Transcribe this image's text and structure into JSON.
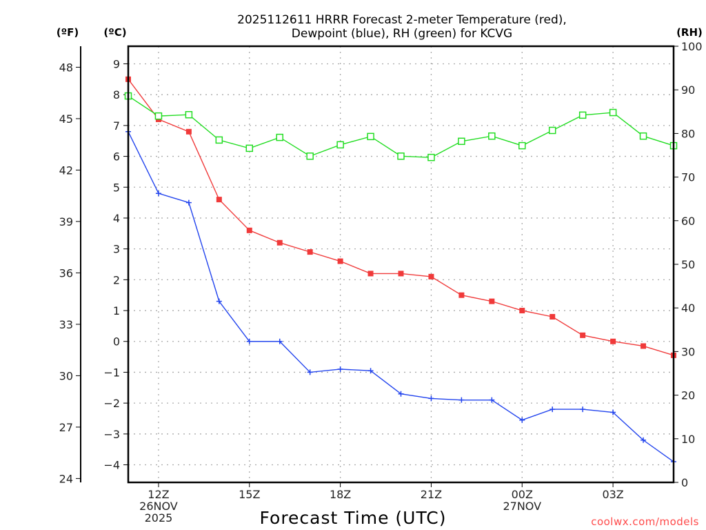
{
  "chart_data": {
    "type": "line",
    "title_lines": [
      "2025112611 HRRR Forecast 2-meter Temperature (red),",
      "Dewpoint (blue), RH (green) for KCVG"
    ],
    "xlabel": "Forecast Time (UTC)",
    "credit": "coolwx.com/models",
    "x_hours": [
      11,
      12,
      13,
      14,
      15,
      16,
      17,
      18,
      19,
      20,
      21,
      22,
      23,
      24,
      25,
      26,
      27,
      28,
      29
    ],
    "x_range_hours": [
      11,
      29
    ],
    "x_ticks": [
      {
        "hour": 12,
        "lines": [
          "12Z",
          "26NOV",
          "2025"
        ]
      },
      {
        "hour": 15,
        "lines": [
          "15Z"
        ]
      },
      {
        "hour": 18,
        "lines": [
          "18Z"
        ]
      },
      {
        "hour": 21,
        "lines": [
          "21Z"
        ]
      },
      {
        "hour": 24,
        "lines": [
          "00Z",
          "27NOV"
        ]
      },
      {
        "hour": 27,
        "lines": [
          "03Z"
        ]
      }
    ],
    "axes": {
      "celsius": {
        "label": "(ºC)",
        "range": [
          -4.57,
          9.57
        ],
        "ticks": [
          9,
          8,
          7,
          6,
          5,
          4,
          3,
          2,
          1,
          0,
          -1,
          -2,
          -3,
          -4
        ]
      },
      "fahrenheit": {
        "label": "(ºF)",
        "ticks": [
          48,
          45,
          42,
          39,
          36,
          33,
          30,
          27,
          24
        ]
      },
      "rh": {
        "label": "(RH)",
        "range": [
          0,
          100
        ],
        "ticks": [
          100,
          90,
          80,
          70,
          60,
          50,
          40,
          30,
          20,
          10,
          0
        ]
      }
    },
    "grid": true,
    "series": [
      {
        "name": "Temperature",
        "axis": "celsius",
        "color": "#f03a3a",
        "marker": "filled-square",
        "values": [
          8.5,
          7.2,
          6.8,
          4.6,
          3.6,
          3.2,
          2.9,
          2.6,
          2.2,
          2.2,
          2.1,
          1.5,
          1.3,
          1.0,
          0.8,
          0.2,
          0.0,
          -0.15,
          -0.45
        ]
      },
      {
        "name": "Dewpoint",
        "axis": "celsius",
        "color": "#2244ee",
        "marker": "plus",
        "values": [
          6.8,
          4.8,
          4.5,
          1.3,
          0.0,
          0.0,
          -1.0,
          -0.9,
          -0.95,
          -1.7,
          -1.85,
          -1.9,
          -1.9,
          -2.55,
          -2.2,
          -2.2,
          -2.3,
          -3.2,
          -3.9
        ]
      },
      {
        "name": "RH",
        "axis": "rh",
        "color": "#22dd22",
        "marker": "open-square",
        "values": [
          88.6,
          84.0,
          84.3,
          78.5,
          76.6,
          79.1,
          74.8,
          77.4,
          79.3,
          74.8,
          74.5,
          78.2,
          79.4,
          77.2,
          80.7,
          84.2,
          84.8,
          79.4,
          77.2
        ]
      }
    ]
  }
}
